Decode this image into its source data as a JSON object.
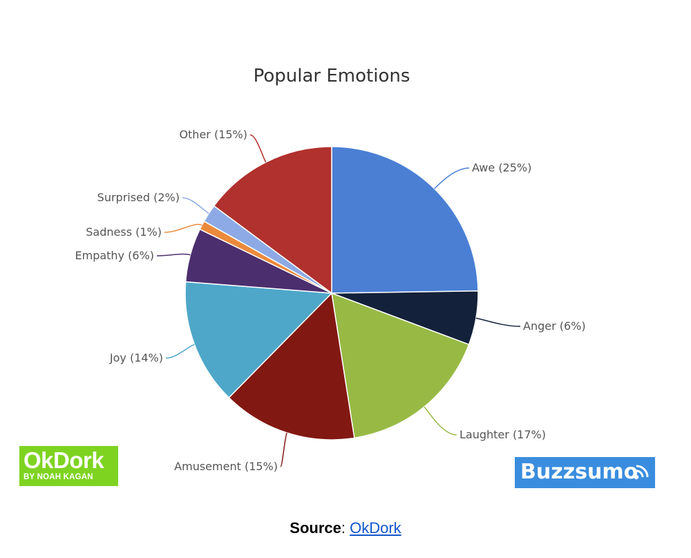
{
  "chart_data": {
    "type": "pie",
    "title": "Popular Emotions",
    "slices": [
      {
        "label": "Awe (25%)",
        "value": 25,
        "color": "#4a7fd4"
      },
      {
        "label": "Anger (6%)",
        "value": 6,
        "color": "#14213a"
      },
      {
        "label": "Laughter (17%)",
        "value": 17,
        "color": "#98ba45"
      },
      {
        "label": "Amusement (15%)",
        "value": 15,
        "color": "#821812"
      },
      {
        "label": "Joy (14%)",
        "value": 14,
        "color": "#4ea7c9"
      },
      {
        "label": "Empathy (6%)",
        "value": 6,
        "color": "#4b2e6e"
      },
      {
        "label": "Sadness (1%)",
        "value": 1,
        "color": "#ec8a3c"
      },
      {
        "label": "Surprised (2%)",
        "value": 2,
        "color": "#8eaae6"
      },
      {
        "label": "Other (15%)",
        "value": 15,
        "color": "#b0312d"
      }
    ]
  },
  "logos": {
    "okdork_main": "OkDork",
    "okdork_sub": "BY NOAH KAGAN",
    "buzzsumo": "Buzzsumo"
  },
  "source": {
    "label": "Source",
    "separator": ": ",
    "link_text": "OkDork"
  }
}
